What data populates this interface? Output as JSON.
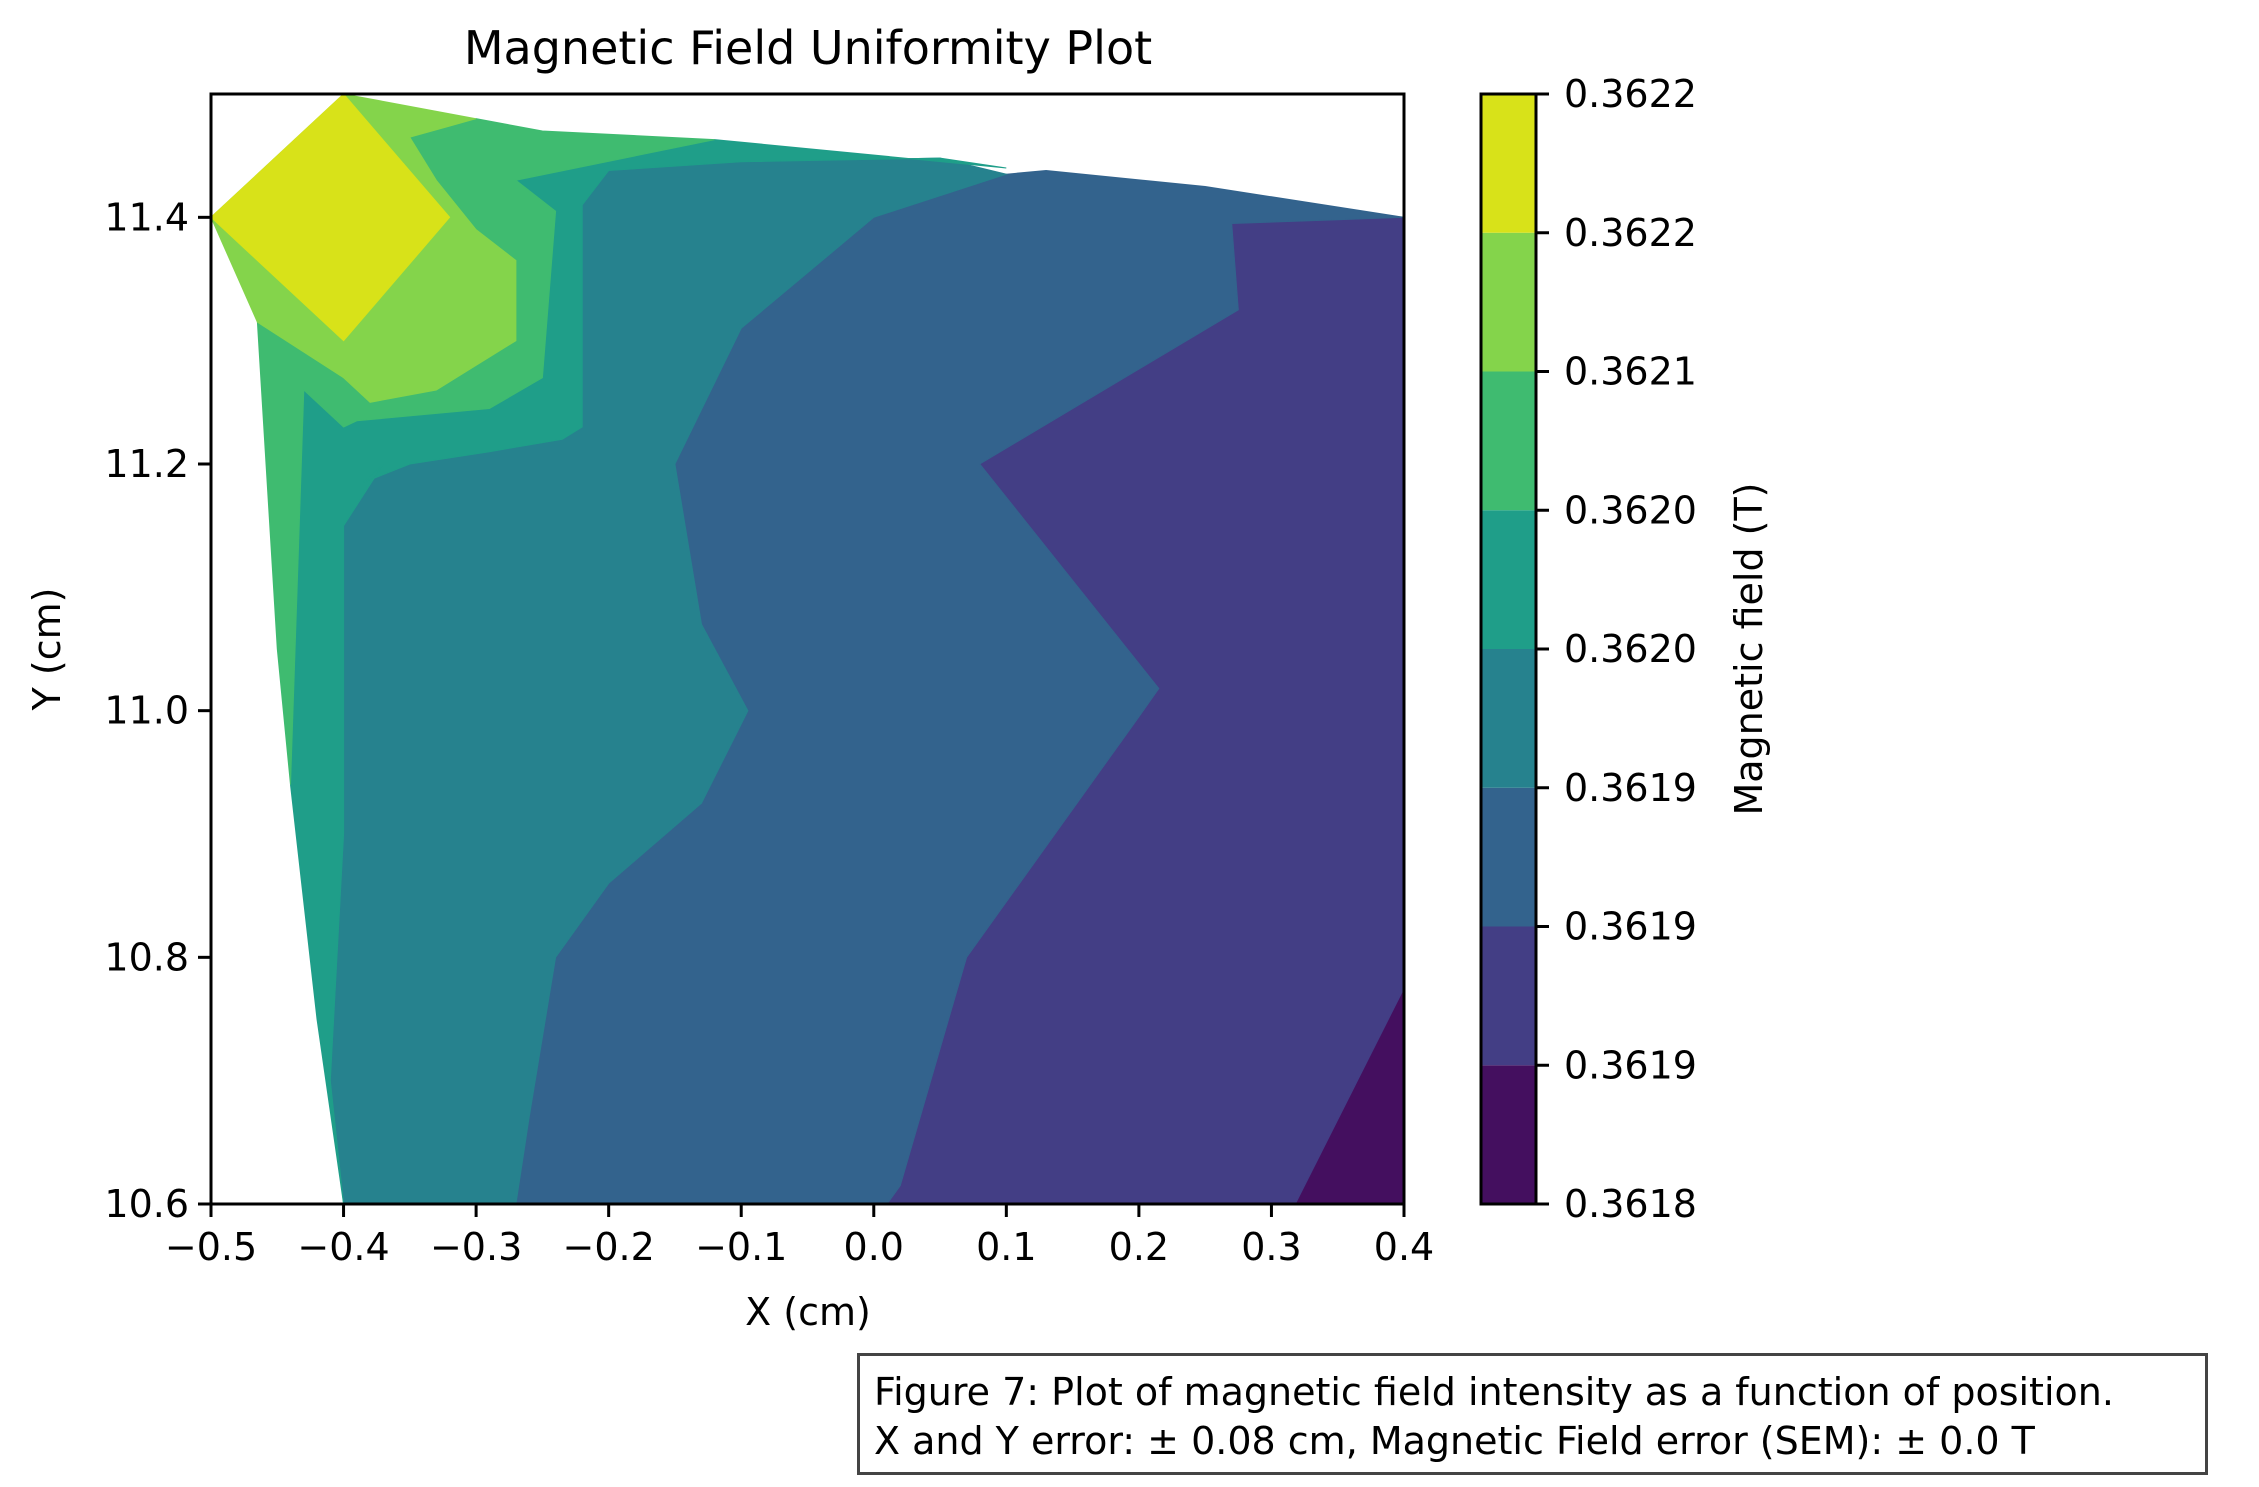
{
  "chart_data": {
    "type": "contourf",
    "title": "Magnetic Field Uniformity Plot",
    "xlabel": "X (cm)",
    "ylabel": "Y (cm)",
    "xlim": [
      -0.5,
      0.4
    ],
    "ylim": [
      10.6,
      11.5
    ],
    "x_ticks": [
      "−0.5",
      "−0.4",
      "−0.3",
      "−0.2",
      "−0.1",
      "0.0",
      "0.1",
      "0.2",
      "0.3",
      "0.4"
    ],
    "y_ticks": [
      "10.6",
      "10.8",
      "11.0",
      "11.2",
      "11.4"
    ],
    "colorbar": {
      "label": "Magnetic field (T)",
      "tick_labels": [
        "0.3618",
        "0.3619",
        "0.3619",
        "0.3619",
        "0.3620",
        "0.3620",
        "0.3621",
        "0.3622",
        "0.3622"
      ],
      "colormap": "viridis",
      "level_colors": [
        "#440f5f",
        "#433e85",
        "#33638d",
        "#26828e",
        "#1f9e89",
        "#3fbb70",
        "#84d44b",
        "#d8e219"
      ]
    },
    "regions": [
      {
        "level": 0,
        "polygon": [
          [
            0.318,
            10.6
          ],
          [
            0.4,
            10.6
          ],
          [
            0.4,
            10.775
          ]
        ]
      },
      {
        "level": 1,
        "polygon": [
          [
            0.01,
            10.6
          ],
          [
            0.318,
            10.6
          ],
          [
            0.4,
            10.775
          ],
          [
            0.4,
            11.4
          ],
          [
            0.35,
            11.398
          ],
          [
            0.27,
            11.395
          ],
          [
            0.275,
            11.325
          ],
          [
            0.08,
            11.2
          ],
          [
            0.215,
            11.018
          ],
          [
            0.2,
            10.995
          ],
          [
            0.07,
            10.8
          ],
          [
            0.02,
            10.615
          ]
        ]
      },
      {
        "level": 2,
        "polygon": [
          [
            -0.27,
            10.6
          ],
          [
            0.01,
            10.6
          ],
          [
            0.02,
            10.615
          ],
          [
            0.07,
            10.8
          ],
          [
            0.2,
            10.995
          ],
          [
            0.215,
            11.018
          ],
          [
            0.08,
            11.2
          ],
          [
            0.275,
            11.325
          ],
          [
            0.27,
            11.395
          ],
          [
            0.35,
            11.398
          ],
          [
            0.4,
            11.4
          ],
          [
            0.25,
            11.425
          ],
          [
            0.13,
            11.438
          ],
          [
            0.1,
            11.435
          ],
          [
            0.0,
            11.4
          ],
          [
            -0.1,
            11.31
          ],
          [
            -0.15,
            11.2
          ],
          [
            -0.13,
            11.07
          ],
          [
            -0.095,
            11.0
          ],
          [
            -0.13,
            10.925
          ],
          [
            -0.2,
            10.86
          ],
          [
            -0.24,
            10.8
          ],
          [
            -0.26,
            10.67
          ]
        ]
      },
      {
        "level": 3,
        "polygon": [
          [
            -0.4,
            10.6
          ],
          [
            -0.27,
            10.6
          ],
          [
            -0.26,
            10.67
          ],
          [
            -0.24,
            10.8
          ],
          [
            -0.2,
            10.86
          ],
          [
            -0.13,
            10.925
          ],
          [
            -0.095,
            11.0
          ],
          [
            -0.13,
            11.07
          ],
          [
            -0.15,
            11.2
          ],
          [
            -0.1,
            11.31
          ],
          [
            0.0,
            11.4
          ],
          [
            0.1,
            11.435
          ],
          [
            0.05,
            11.448
          ],
          [
            -0.1,
            11.445
          ],
          [
            -0.2,
            11.438
          ],
          [
            -0.22,
            11.41
          ],
          [
            -0.22,
            11.23
          ],
          [
            -0.235,
            11.22
          ],
          [
            -0.29,
            11.21
          ],
          [
            -0.35,
            11.2
          ],
          [
            -0.385,
            11.185
          ],
          [
            -0.37,
            11.2
          ],
          [
            -0.4,
            11.15
          ],
          [
            -0.4,
            10.9
          ],
          [
            -0.41,
            10.7
          ]
        ]
      },
      {
        "level": 4,
        "polygon": [
          [
            -0.4,
            10.6
          ],
          [
            -0.41,
            10.7
          ],
          [
            -0.4,
            10.9
          ],
          [
            -0.4,
            11.15
          ],
          [
            -0.37,
            11.2
          ],
          [
            -0.385,
            11.185
          ],
          [
            -0.35,
            11.2
          ],
          [
            -0.29,
            11.21
          ],
          [
            -0.235,
            11.22
          ],
          [
            -0.22,
            11.23
          ],
          [
            -0.22,
            11.41
          ],
          [
            -0.2,
            11.438
          ],
          [
            -0.1,
            11.445
          ],
          [
            0.05,
            11.448
          ],
          [
            0.1,
            11.44
          ],
          [
            -0.12,
            11.463
          ],
          [
            -0.27,
            11.43
          ],
          [
            -0.24,
            11.405
          ],
          [
            -0.25,
            11.27
          ],
          [
            -0.29,
            11.245
          ],
          [
            -0.39,
            11.235
          ],
          [
            -0.4,
            11.23
          ],
          [
            -0.43,
            11.26
          ],
          [
            -0.44,
            10.94
          ],
          [
            -0.42,
            10.75
          ]
        ]
      },
      {
        "level": 5,
        "polygon": [
          [
            -0.44,
            10.94
          ],
          [
            -0.43,
            11.26
          ],
          [
            -0.4,
            11.23
          ],
          [
            -0.39,
            11.235
          ],
          [
            -0.29,
            11.245
          ],
          [
            -0.25,
            11.27
          ],
          [
            -0.24,
            11.405
          ],
          [
            -0.27,
            11.43
          ],
          [
            -0.12,
            11.463
          ],
          [
            -0.25,
            11.47
          ],
          [
            -0.3,
            11.48
          ],
          [
            -0.35,
            11.465
          ],
          [
            -0.33,
            11.43
          ],
          [
            -0.3,
            11.39
          ],
          [
            -0.27,
            11.365
          ],
          [
            -0.27,
            11.3
          ],
          [
            -0.33,
            11.26
          ],
          [
            -0.38,
            11.25
          ],
          [
            -0.4,
            11.27
          ],
          [
            -0.465,
            11.315
          ],
          [
            -0.45,
            11.05
          ]
        ]
      },
      {
        "level": 6,
        "polygon": [
          [
            -0.5,
            11.4
          ],
          [
            -0.465,
            11.315
          ],
          [
            -0.4,
            11.27
          ],
          [
            -0.38,
            11.25
          ],
          [
            -0.33,
            11.26
          ],
          [
            -0.27,
            11.3
          ],
          [
            -0.27,
            11.365
          ],
          [
            -0.3,
            11.39
          ],
          [
            -0.33,
            11.43
          ],
          [
            -0.35,
            11.465
          ],
          [
            -0.3,
            11.48
          ],
          [
            -0.4,
            11.5
          ],
          [
            -0.42,
            11.48
          ]
        ]
      },
      {
        "level": 7,
        "polygon": [
          [
            -0.5,
            11.4
          ],
          [
            -0.4,
            11.5
          ],
          [
            -0.32,
            11.4
          ],
          [
            -0.4,
            11.3
          ]
        ]
      }
    ]
  },
  "caption": {
    "line1": "Figure 7: Plot of magnetic field intensity as a function of position.",
    "line2": "X and Y error: ± 0.08 cm, Magnetic Field error (SEM): ± 0.0 T"
  }
}
